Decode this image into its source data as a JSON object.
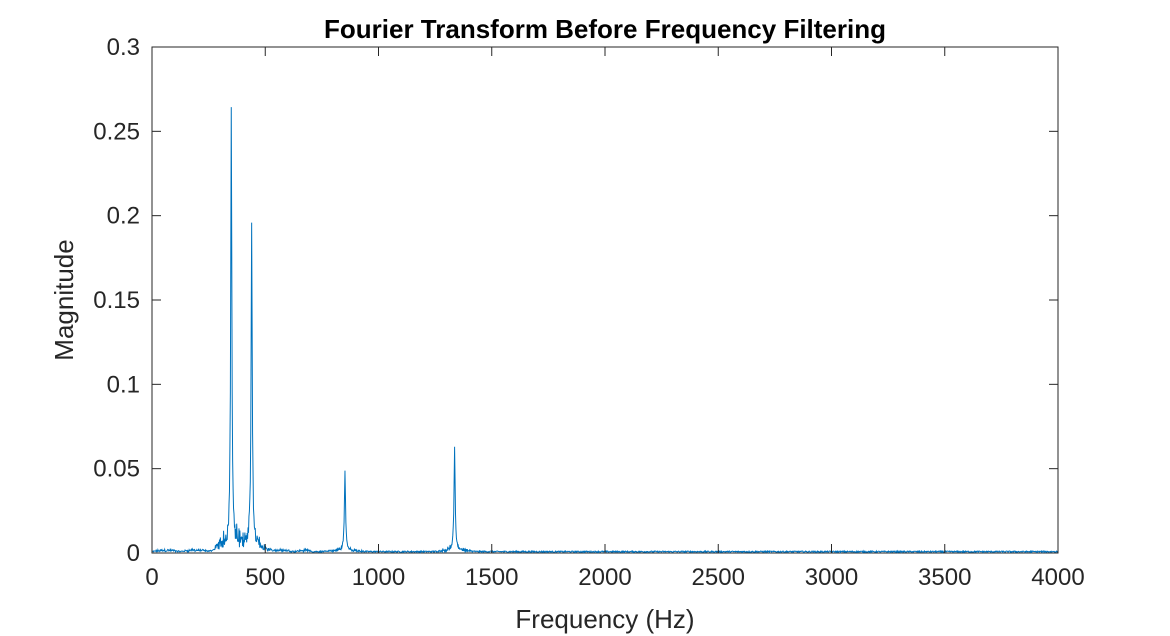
{
  "chart_data": {
    "type": "line",
    "title": "Fourier Transform Before Frequency Filtering",
    "xlabel": "Frequency (Hz)",
    "ylabel": "Magnitude",
    "xlim": [
      0,
      4000
    ],
    "ylim": [
      0,
      0.3
    ],
    "x_ticks": [
      "0",
      "500",
      "1000",
      "1500",
      "2000",
      "2500",
      "3000",
      "3500",
      "4000"
    ],
    "y_ticks": [
      "0",
      "0.05",
      "0.1",
      "0.15",
      "0.2",
      "0.25",
      "0.3"
    ],
    "grid": false,
    "series": [
      {
        "color": "#0072BD",
        "peaks": [
          {
            "x": 350,
            "y": 0.263
          },
          {
            "x": 440,
            "y": 0.194
          },
          {
            "x": 852,
            "y": 0.048
          },
          {
            "x": 1336,
            "y": 0.062
          }
        ],
        "baseline": 0.001
      }
    ]
  }
}
